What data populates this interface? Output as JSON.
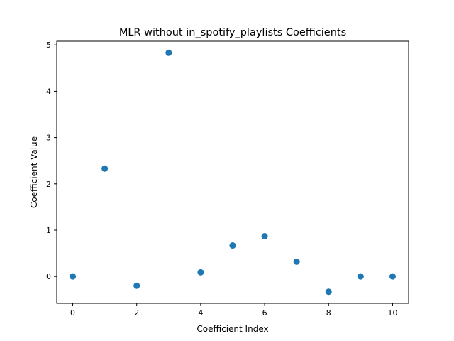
{
  "chart_data": {
    "type": "scatter",
    "title": "MLR without in_spotify_playlists Coefficients",
    "xlabel": "Coefficient Index",
    "ylabel": "Coefficient Value",
    "x": [
      0,
      1,
      2,
      3,
      4,
      5,
      6,
      7,
      8,
      9,
      10
    ],
    "y": [
      0.0,
      2.33,
      -0.2,
      4.83,
      0.09,
      0.67,
      0.87,
      0.32,
      -0.33,
      0.0,
      0.0
    ],
    "xlim": [
      -0.5,
      10.5
    ],
    "ylim": [
      -0.58,
      5.08
    ],
    "xticks": [
      "0",
      "2",
      "4",
      "6",
      "8",
      "10"
    ],
    "yticks": [
      "0",
      "1",
      "2",
      "3",
      "4",
      "5"
    ],
    "grid": false,
    "marker_color": "#1f77b4"
  }
}
